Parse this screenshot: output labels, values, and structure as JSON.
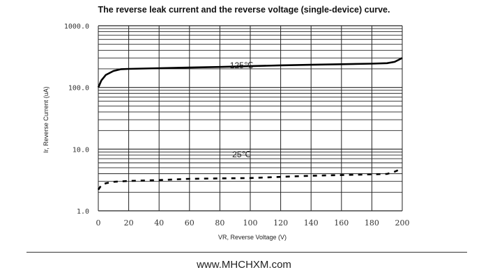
{
  "chart_data": {
    "type": "line",
    "title": "The reverse leak current and the reverse voltage (single-device) curve.",
    "xlabel": "VR, Reverse Voltage (V)",
    "ylabel": "Ir, Reverse Current (uA)",
    "xlim": [
      0,
      200
    ],
    "ylim": [
      1,
      1000
    ],
    "yscale": "log",
    "grid": true,
    "xticks": [
      "0",
      "20",
      "40",
      "60",
      "80",
      "100",
      "120",
      "140",
      "160",
      "180",
      "200"
    ],
    "yticks": [
      "1.0",
      "10.0",
      "100.0",
      "1000.0"
    ],
    "series": [
      {
        "name": "125℃",
        "style": "solid",
        "color": "#000000",
        "x": [
          0,
          2,
          5,
          10,
          15,
          20,
          40,
          60,
          80,
          100,
          120,
          140,
          160,
          180,
          190,
          195,
          200
        ],
        "y": [
          100,
          130,
          160,
          185,
          198,
          200,
          205,
          210,
          215,
          221,
          228,
          233,
          238,
          243,
          247,
          260,
          300
        ]
      },
      {
        "name": "25℃",
        "style": "dashed",
        "color": "#000000",
        "x": [
          0,
          2,
          5,
          10,
          20,
          40,
          60,
          80,
          100,
          120,
          140,
          160,
          180,
          190,
          195,
          200
        ],
        "y": [
          2.2,
          2.6,
          2.8,
          2.95,
          3.05,
          3.15,
          3.3,
          3.35,
          3.4,
          3.55,
          3.7,
          3.8,
          3.9,
          3.96,
          4.3,
          4.9
        ]
      }
    ]
  },
  "footer": {
    "website": "www.MHCHXM.com"
  }
}
